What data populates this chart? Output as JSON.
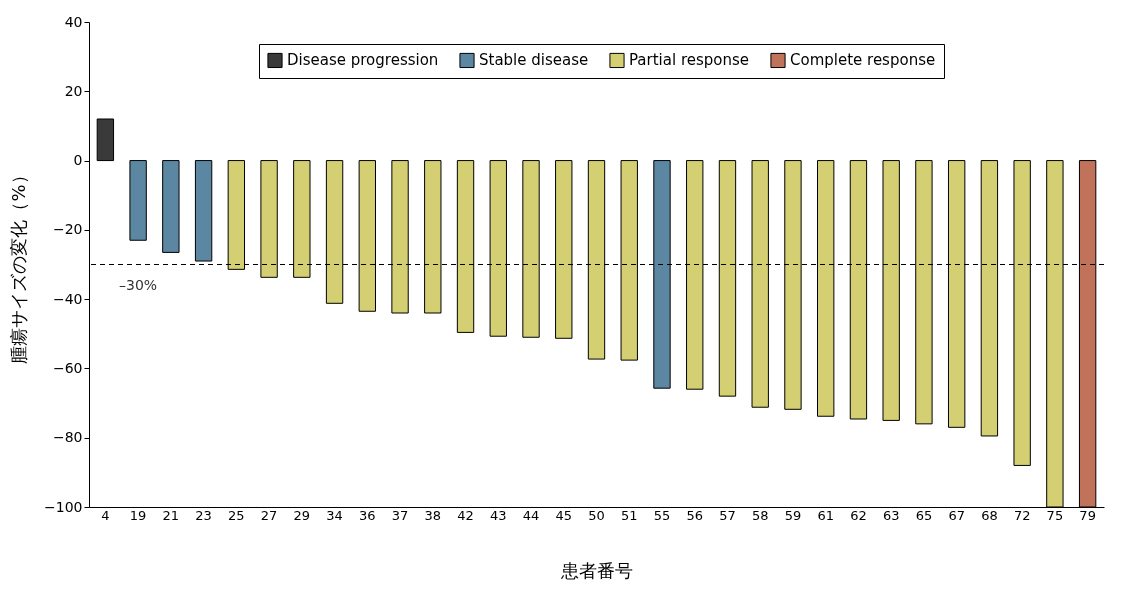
{
  "chart_data": {
    "type": "bar",
    "xlabel": "患者番号",
    "ylabel": "腫瘍サイズの変化（%）",
    "categories": [
      "4",
      "19",
      "21",
      "23",
      "25",
      "27",
      "29",
      "34",
      "36",
      "37",
      "38",
      "42",
      "43",
      "44",
      "45",
      "50",
      "51",
      "55",
      "56",
      "57",
      "58",
      "59",
      "61",
      "62",
      "63",
      "65",
      "67",
      "68",
      "72",
      "75",
      "79"
    ],
    "series": [
      {
        "name": "Disease progression",
        "color": "#3a3a3a",
        "values": [
          12,
          null,
          null,
          null,
          null,
          null,
          null,
          null,
          null,
          null,
          null,
          null,
          null,
          null,
          null,
          null,
          null,
          null,
          null,
          null,
          null,
          null,
          null,
          null,
          null,
          null,
          null,
          null,
          null,
          null,
          null
        ]
      },
      {
        "name": "Stable disease",
        "color": "#5b87a3",
        "values": [
          null,
          -23,
          -26.5,
          -29,
          null,
          null,
          null,
          null,
          null,
          null,
          null,
          null,
          null,
          null,
          null,
          null,
          null,
          -65.7,
          null,
          null,
          null,
          null,
          null,
          null,
          null,
          null,
          null,
          null,
          null,
          null,
          null
        ]
      },
      {
        "name": "Partial response",
        "color": "#d4cf72",
        "values": [
          null,
          null,
          null,
          null,
          -31.4,
          -33.7,
          -33.7,
          -41.2,
          -43.5,
          -44,
          -44,
          -49.6,
          -50.7,
          -51,
          -51.3,
          -57.3,
          -57.6,
          null,
          -66,
          -68,
          -71.2,
          -71.8,
          -73.8,
          -74.6,
          -75,
          -76,
          -77,
          -79.5,
          -88,
          -100,
          null
        ]
      },
      {
        "name": "Complete response",
        "color": "#c0735a",
        "values": [
          null,
          null,
          null,
          null,
          null,
          null,
          null,
          null,
          null,
          null,
          null,
          null,
          null,
          null,
          null,
          null,
          null,
          null,
          null,
          null,
          null,
          null,
          null,
          null,
          null,
          null,
          null,
          null,
          null,
          null,
          -100
        ]
      }
    ],
    "ylim": [
      -100,
      40
    ],
    "yticks": [
      -100,
      -80,
      -60,
      -40,
      -20,
      0,
      20,
      40
    ],
    "ref_lines": [
      {
        "axis": "y",
        "value": -30,
        "label": "–30%",
        "line_style": "dashed"
      }
    ],
    "legend": "top"
  }
}
